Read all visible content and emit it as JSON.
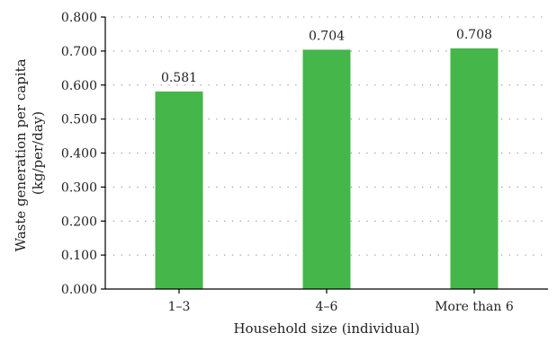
{
  "chart_data": {
    "type": "bar",
    "categories": [
      "1–3",
      "4–6",
      "More than 6"
    ],
    "values": [
      0.581,
      0.704,
      0.708
    ],
    "value_labels": [
      "0.581",
      "0.704",
      "0.708"
    ],
    "xlabel": "Household size (individual)",
    "ylabel": [
      "Waste generation per capita",
      "(kg/per/day)"
    ],
    "ylim": [
      0,
      0.8
    ],
    "yticks": [
      0,
      0.1,
      0.2,
      0.3,
      0.4,
      0.5,
      0.6,
      0.7,
      0.8
    ],
    "ytick_labels": [
      "0.000",
      "0.100",
      "0.200",
      "0.300",
      "0.400",
      "0.500",
      "0.600",
      "0.700",
      "0.800"
    ],
    "grid": "dotted-horizontal",
    "bar_color": "#45b649"
  }
}
